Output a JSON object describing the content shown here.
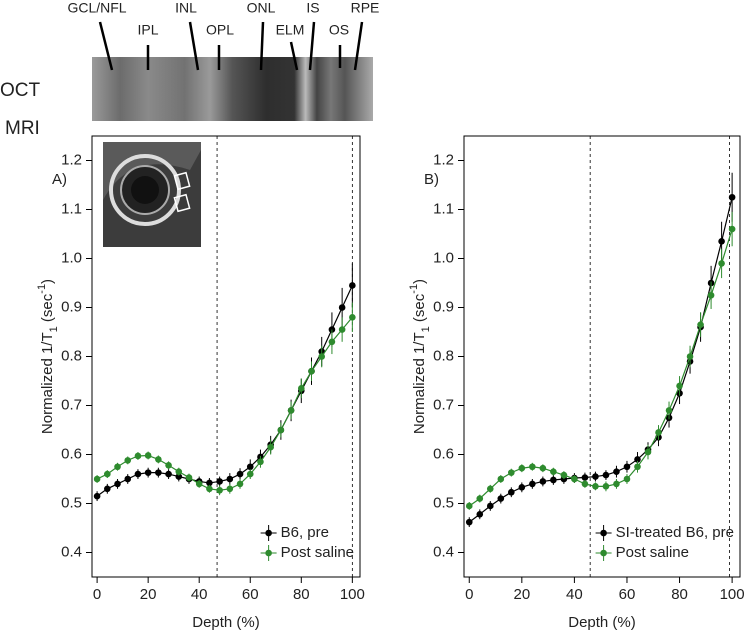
{
  "figure": {
    "row_labels": [
      "OCT",
      "MRI"
    ],
    "layers": [
      "GCL/NFL",
      "IPL",
      "INL",
      "OPL",
      "ONL",
      "ELM",
      "IS",
      "OS",
      "RPE"
    ]
  },
  "chart_data": [
    {
      "type": "line",
      "panel_label": "A)",
      "xlabel": "Depth (%)",
      "ylabel": [
        "Normalized 1/T",
        "1",
        " (sec",
        "-1",
        ")"
      ],
      "x": [
        0,
        4,
        8,
        12,
        16,
        20,
        24,
        28,
        32,
        36,
        40,
        44,
        48,
        52,
        56,
        60,
        64,
        68,
        72,
        76,
        80,
        84,
        88,
        92,
        96,
        100
      ],
      "series": [
        {
          "name": "B6, pre",
          "color": "#000000",
          "values": [
            0.515,
            0.53,
            0.54,
            0.55,
            0.56,
            0.563,
            0.563,
            0.56,
            0.555,
            0.55,
            0.545,
            0.542,
            0.545,
            0.55,
            0.56,
            0.575,
            0.595,
            0.62,
            0.65,
            0.69,
            0.73,
            0.77,
            0.81,
            0.855,
            0.9,
            0.945
          ],
          "errors": [
            0.01,
            0.01,
            0.01,
            0.01,
            0.01,
            0.01,
            0.01,
            0.01,
            0.01,
            0.01,
            0.01,
            0.01,
            0.01,
            0.012,
            0.012,
            0.015,
            0.015,
            0.018,
            0.02,
            0.022,
            0.025,
            0.028,
            0.03,
            0.035,
            0.04,
            0.045
          ]
        },
        {
          "name": "Post saline",
          "color": "#2e8b2e",
          "values": [
            0.55,
            0.56,
            0.575,
            0.588,
            0.597,
            0.598,
            0.59,
            0.578,
            0.565,
            0.553,
            0.54,
            0.53,
            0.527,
            0.53,
            0.54,
            0.56,
            0.585,
            0.615,
            0.65,
            0.69,
            0.735,
            0.77,
            0.8,
            0.83,
            0.855,
            0.88
          ],
          "errors": [
            0.008,
            0.008,
            0.008,
            0.008,
            0.008,
            0.008,
            0.008,
            0.008,
            0.008,
            0.008,
            0.008,
            0.008,
            0.01,
            0.01,
            0.01,
            0.01,
            0.012,
            0.015,
            0.015,
            0.018,
            0.02,
            0.02,
            0.022,
            0.025,
            0.025,
            0.03
          ]
        }
      ],
      "xlim": [
        -2,
        103
      ],
      "ylim": [
        0.35,
        1.25
      ],
      "xticks": [
        0,
        20,
        40,
        60,
        80,
        100
      ],
      "yticks": [
        0.4,
        0.5,
        0.6,
        0.7,
        0.8,
        0.9,
        {
          "value": 1,
          "label": "1.0"
        },
        1.1,
        1.2
      ],
      "vlines": [
        47,
        100
      ],
      "legend": "lower right"
    },
    {
      "type": "line",
      "panel_label": "B)",
      "xlabel": "Depth (%)",
      "ylabel": [
        "Normalized 1/T",
        "1",
        " (sec",
        "-1",
        ")"
      ],
      "x": [
        0,
        4,
        8,
        12,
        16,
        20,
        24,
        28,
        32,
        36,
        40,
        44,
        48,
        52,
        56,
        60,
        64,
        68,
        72,
        76,
        80,
        84,
        88,
        92,
        96,
        100
      ],
      "series": [
        {
          "name": "SI-treated B6, pre",
          "color": "#000000",
          "values": [
            0.462,
            0.478,
            0.495,
            0.51,
            0.523,
            0.533,
            0.54,
            0.545,
            0.548,
            0.55,
            0.552,
            0.553,
            0.555,
            0.558,
            0.565,
            0.575,
            0.59,
            0.61,
            0.635,
            0.675,
            0.725,
            0.79,
            0.86,
            0.95,
            1.035,
            1.125
          ],
          "errors": [
            0.01,
            0.01,
            0.01,
            0.01,
            0.01,
            0.01,
            0.01,
            0.01,
            0.01,
            0.01,
            0.01,
            0.01,
            0.01,
            0.01,
            0.012,
            0.012,
            0.015,
            0.015,
            0.018,
            0.02,
            0.022,
            0.025,
            0.03,
            0.035,
            0.04,
            0.05
          ]
        },
        {
          "name": "Post saline",
          "color": "#2e8b2e",
          "values": [
            0.495,
            0.51,
            0.53,
            0.55,
            0.563,
            0.572,
            0.575,
            0.572,
            0.565,
            0.558,
            0.55,
            0.54,
            0.535,
            0.535,
            0.54,
            0.55,
            0.575,
            0.605,
            0.645,
            0.69,
            0.74,
            0.8,
            0.865,
            0.925,
            0.99,
            1.06
          ],
          "errors": [
            0.008,
            0.008,
            0.008,
            0.008,
            0.008,
            0.008,
            0.008,
            0.008,
            0.008,
            0.008,
            0.008,
            0.008,
            0.008,
            0.01,
            0.01,
            0.01,
            0.012,
            0.015,
            0.015,
            0.018,
            0.02,
            0.022,
            0.025,
            0.028,
            0.03,
            0.035
          ]
        }
      ],
      "xlim": [
        -2,
        103
      ],
      "ylim": [
        0.35,
        1.25
      ],
      "xticks": [
        0,
        20,
        40,
        60,
        80,
        100
      ],
      "yticks": [
        0.4,
        0.5,
        0.6,
        0.7,
        0.8,
        0.9,
        {
          "value": 1,
          "label": "1.0"
        },
        1.1,
        1.2
      ],
      "vlines": [
        46,
        99
      ],
      "legend": "lower right"
    }
  ]
}
